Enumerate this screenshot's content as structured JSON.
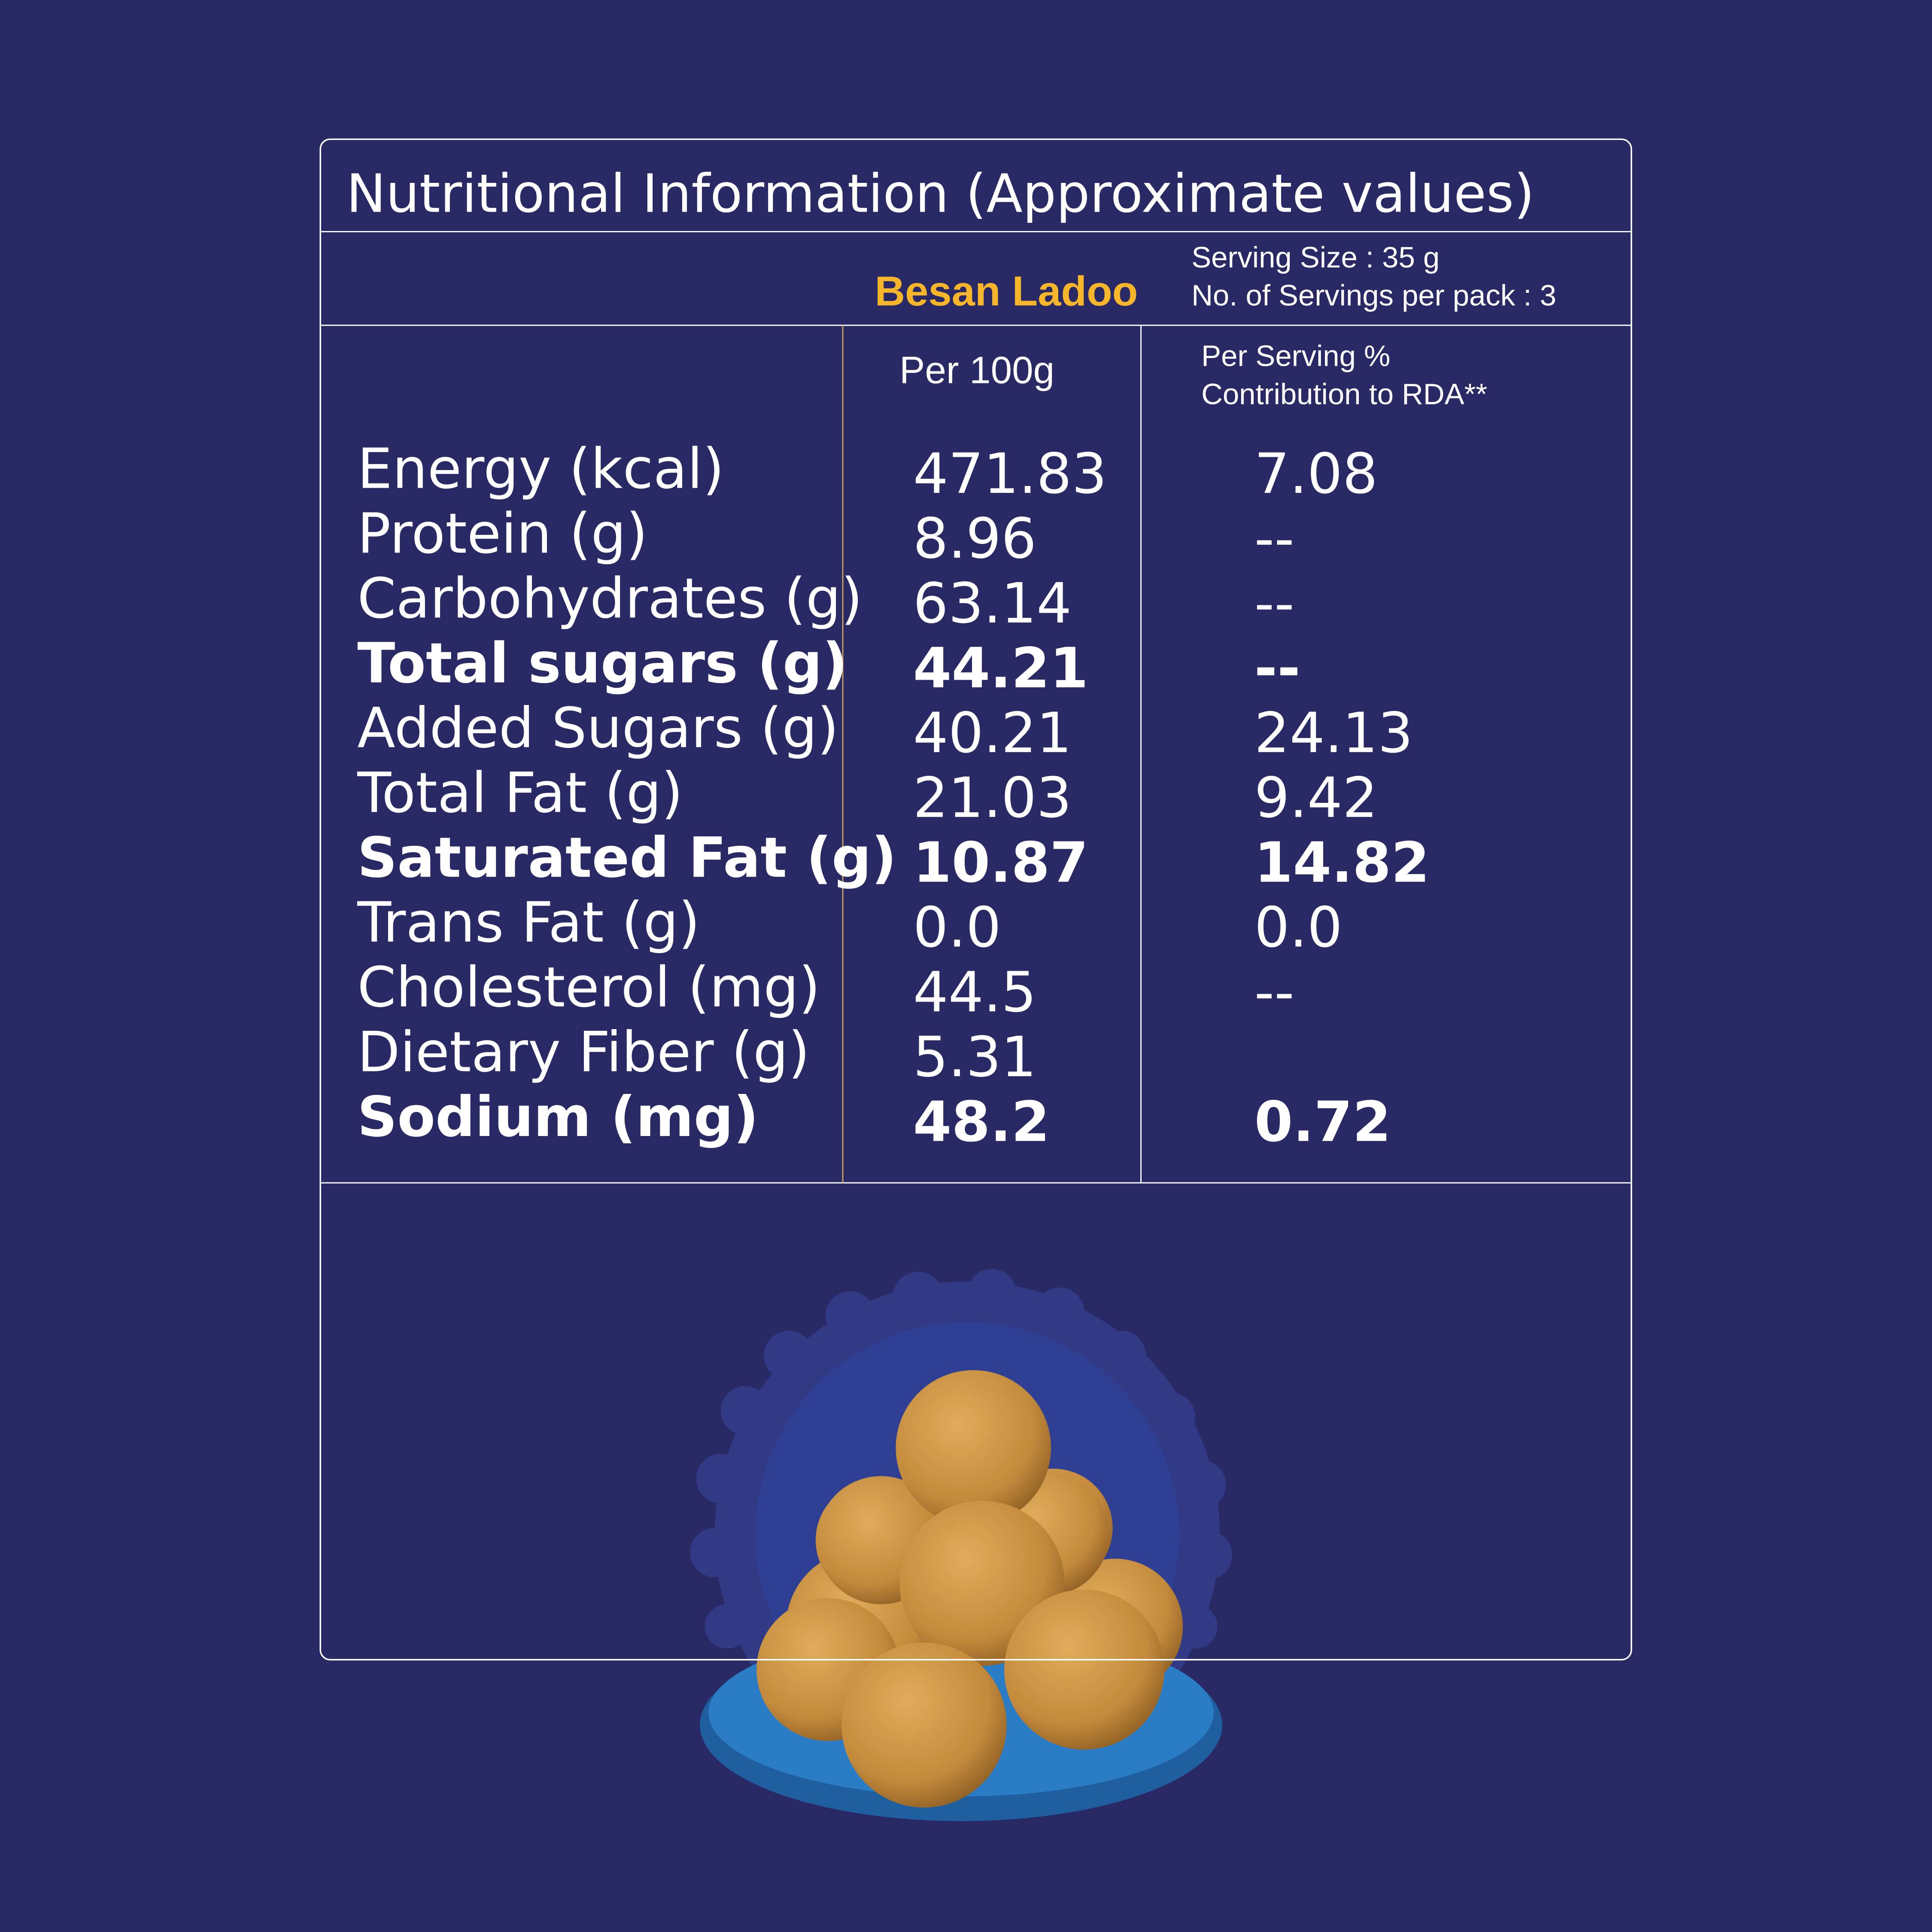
{
  "header": {
    "title": "Nutritional Information (Approximate values)"
  },
  "product": {
    "name": "Besan Ladoo"
  },
  "serving": {
    "size": "Serving Size : 35 g",
    "count": "No. of Servings per pack : 3"
  },
  "columns": {
    "per_100g": "Per 100g",
    "rda": [
      "Per Serving %",
      "Contribution to RDA**"
    ]
  },
  "table": {
    "rows": [
      {
        "label": "Energy (kcal)",
        "per_100g": "471.83",
        "rda": "7.08",
        "bold": false
      },
      {
        "label": "Protein (g)",
        "per_100g": "8.96",
        "rda": "--",
        "bold": false
      },
      {
        "label": "Carbohydrates (g)",
        "per_100g": "63.14",
        "rda": "--",
        "bold": false
      },
      {
        "label": "Total sugars (g)",
        "per_100g": "44.21",
        "rda": "--",
        "bold": true
      },
      {
        "label": "Added Sugars (g)",
        "per_100g": "40.21",
        "rda": "24.13",
        "bold": false
      },
      {
        "label": "Total Fat (g)",
        "per_100g": "21.03",
        "rda": "9.42",
        "bold": false
      },
      {
        "label": "Saturated Fat (g)",
        "per_100g": "10.87",
        "rda": "14.82",
        "bold": true
      },
      {
        "label": "Trans Fat (g)",
        "per_100g": "0.0",
        "rda": "0.0",
        "bold": false
      },
      {
        "label": "Cholesterol (mg)",
        "per_100g": "44.5",
        "rda": "--",
        "bold": false
      },
      {
        "label": "Dietary Fiber (g)",
        "per_100g": "5.31",
        "rda": null,
        "bold": false
      },
      {
        "label": "Sodium (mg)",
        "per_100g": "48.2",
        "rda": "0.72",
        "bold": true
      }
    ]
  }
}
